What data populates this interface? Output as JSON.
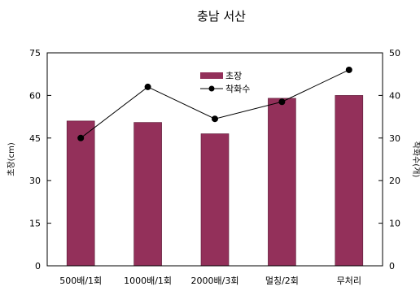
{
  "chart_data": {
    "type": "bar",
    "title": "충남 서산",
    "categories": [
      "500배/1회",
      "1000배/1회",
      "2000배/3회",
      "멀칭/2회",
      "무처리"
    ],
    "series": [
      {
        "name": "초장",
        "type": "bar",
        "axis": "left",
        "values": [
          51,
          50.5,
          46.5,
          59,
          60
        ]
      },
      {
        "name": "착화수",
        "type": "line",
        "axis": "right",
        "values": [
          30,
          42,
          34.5,
          38.5,
          46
        ]
      }
    ],
    "ylabel": "초장(cm)",
    "y2label": "착화수(개)",
    "ylim": [
      0,
      75
    ],
    "y2lim": [
      0,
      50
    ],
    "yticks": [
      0,
      15,
      30,
      45,
      60,
      75
    ],
    "y2ticks": [
      0,
      10,
      20,
      30,
      40,
      50
    ],
    "legend_position": "top-center",
    "grid": false,
    "colors": {
      "bar": "#93305a",
      "line": "#000000"
    }
  }
}
